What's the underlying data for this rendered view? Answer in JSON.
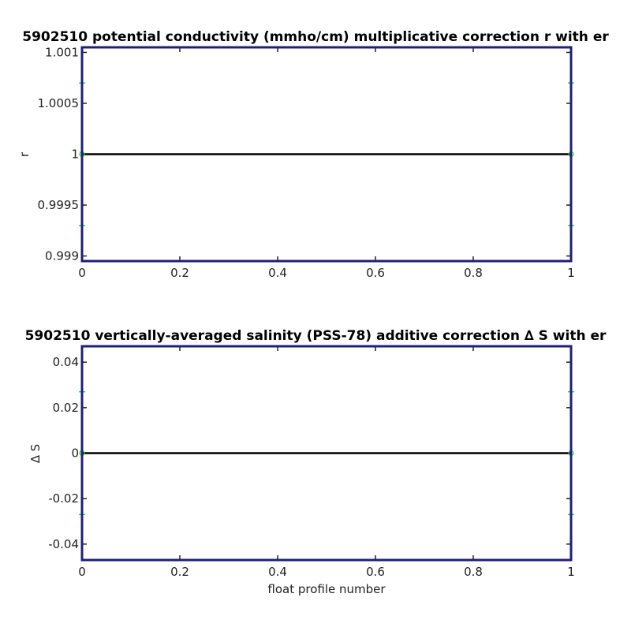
{
  "colors": {
    "frame": "#1f1f7a",
    "series": "#000000",
    "error": "#22dd22",
    "tick_text": "#222222"
  },
  "chart_data": [
    {
      "type": "line",
      "title": "5902510 potential conductivity (mmho/cm) multiplicative correction r with er",
      "xlabel": "",
      "ylabel": "r",
      "xlim": [
        0,
        1
      ],
      "ylim": [
        0.99895,
        1.00105
      ],
      "x_ticks": [
        0,
        0.2,
        0.4,
        0.6,
        0.8,
        1
      ],
      "x_tick_labels": [
        "0",
        "0.2",
        "0.4",
        "0.6",
        "0.8",
        "1"
      ],
      "y_ticks": [
        0.999,
        0.9995,
        1,
        1.0005,
        1.001
      ],
      "y_tick_labels": [
        "0.999",
        "0.9995",
        "1",
        "1.0005",
        "1.001"
      ],
      "grid": false,
      "series": [
        {
          "x": [
            0,
            1
          ],
          "y": [
            1,
            1
          ],
          "err_lower": [
            0.9993,
            0.9993
          ],
          "err_upper": [
            1.0007,
            1.0007
          ]
        }
      ]
    },
    {
      "type": "line",
      "title": "5902510 vertically-averaged salinity (PSS-78) additive correction ∆ S with er",
      "xlabel": "float profile number",
      "ylabel": "∆ S",
      "xlim": [
        0,
        1
      ],
      "ylim": [
        -0.047,
        0.047
      ],
      "x_ticks": [
        0,
        0.2,
        0.4,
        0.6,
        0.8,
        1
      ],
      "x_tick_labels": [
        "0",
        "0.2",
        "0.4",
        "0.6",
        "0.8",
        "1"
      ],
      "y_ticks": [
        -0.04,
        -0.02,
        0,
        0.02,
        0.04
      ],
      "y_tick_labels": [
        "-0.04",
        "-0.02",
        "0",
        "0.02",
        "0.04"
      ],
      "grid": false,
      "series": [
        {
          "x": [
            0,
            1
          ],
          "y": [
            0,
            0
          ],
          "err_lower": [
            -0.027,
            -0.027
          ],
          "err_upper": [
            0.027,
            0.027
          ]
        }
      ]
    }
  ]
}
